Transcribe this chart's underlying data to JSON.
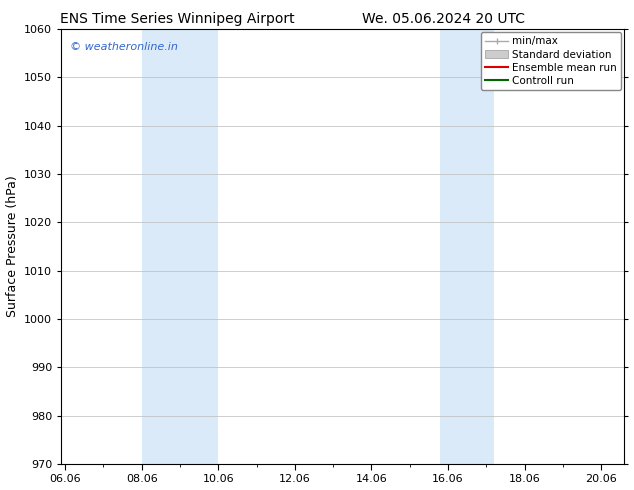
{
  "title_left": "ENS Time Series Winnipeg Airport",
  "title_right": "We. 05.06.2024 20 UTC",
  "ylabel": "Surface Pressure (hPa)",
  "ylim": [
    970,
    1060
  ],
  "yticks": [
    970,
    980,
    990,
    1000,
    1010,
    1020,
    1030,
    1040,
    1050,
    1060
  ],
  "xtick_labels": [
    "06.06",
    "08.06",
    "10.06",
    "12.06",
    "14.06",
    "16.06",
    "18.06",
    "20.06"
  ],
  "xtick_positions": [
    0,
    2,
    4,
    6,
    8,
    10,
    12,
    14
  ],
  "xlim_start": -0.1,
  "xlim_end": 14.6,
  "shaded_bands": [
    {
      "x_start": 2.0,
      "x_end": 4.0
    },
    {
      "x_start": 9.8,
      "x_end": 11.2
    }
  ],
  "shaded_color": "#daeaf8",
  "copyright_text": "© weatheronline.in",
  "copyright_color": "#3366cc",
  "legend_items": [
    {
      "label": "min/max",
      "type": "minmax",
      "color": "#aaaaaa"
    },
    {
      "label": "Standard deviation",
      "type": "patch",
      "color": "#cccccc"
    },
    {
      "label": "Ensemble mean run",
      "type": "line",
      "color": "#dd0000"
    },
    {
      "label": "Controll run",
      "type": "line",
      "color": "#006600"
    }
  ],
  "bg_color": "#ffffff",
  "plot_bg_color": "#ffffff",
  "grid_color": "#bbbbbb",
  "spine_color": "#000000",
  "title_fontsize": 10,
  "ylabel_fontsize": 9,
  "tick_fontsize": 8,
  "copyright_fontsize": 8,
  "legend_fontsize": 7.5
}
